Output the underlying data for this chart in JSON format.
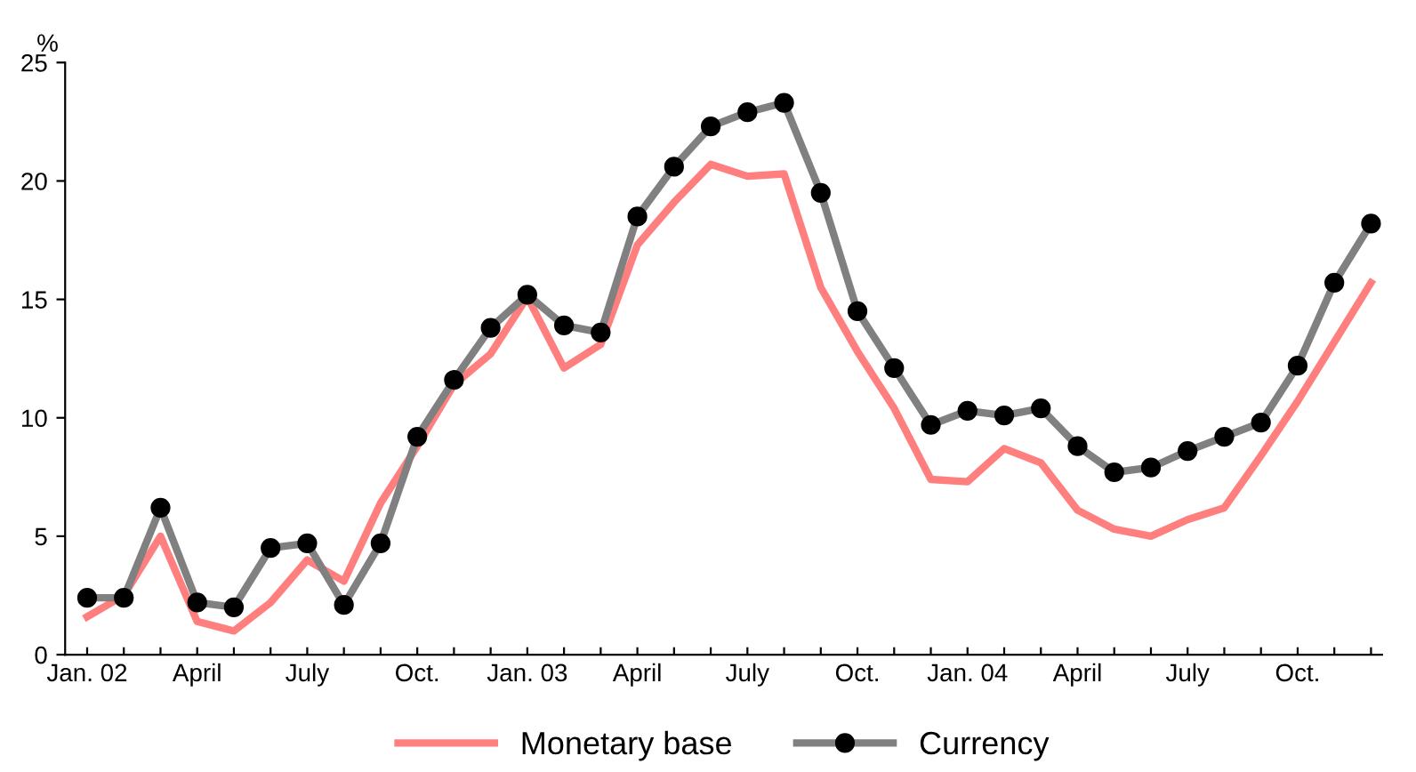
{
  "chart_data": {
    "type": "line",
    "ylabel": "%",
    "categories": [
      "Jan. 02",
      null,
      null,
      "April",
      null,
      null,
      "July",
      null,
      null,
      "Oct.",
      null,
      null,
      "Jan. 03",
      null,
      null,
      "April",
      null,
      null,
      "July",
      null,
      null,
      "Oct.",
      null,
      null,
      "Jan. 04",
      null,
      null,
      "April",
      null,
      null,
      "July",
      null,
      null,
      "Oct.",
      null,
      null
    ],
    "ylim": [
      0,
      25
    ],
    "yticks": [
      0,
      5,
      10,
      15,
      20,
      25
    ],
    "grid": false,
    "legend": "bottom",
    "series": [
      {
        "name": "Monetary base",
        "color": "#ff7f7f",
        "marker": "none",
        "values": [
          1.6,
          2.5,
          5.0,
          1.4,
          1.0,
          2.2,
          4.0,
          3.1,
          6.4,
          8.8,
          11.4,
          12.7,
          15.1,
          12.1,
          13.1,
          17.3,
          19.1,
          20.7,
          20.2,
          20.3,
          15.5,
          12.8,
          10.4,
          7.4,
          7.3,
          8.7,
          8.1,
          6.1,
          5.3,
          5.0,
          5.7,
          6.2,
          8.4,
          10.7,
          13.2,
          15.7
        ]
      },
      {
        "name": "Currency",
        "color": "#808080",
        "marker": "circle",
        "values": [
          2.4,
          2.4,
          6.2,
          2.2,
          2.0,
          4.5,
          4.7,
          2.1,
          4.7,
          9.2,
          11.6,
          13.8,
          15.2,
          13.9,
          13.6,
          18.5,
          20.6,
          22.3,
          22.9,
          23.3,
          19.5,
          14.5,
          12.1,
          9.7,
          10.3,
          10.1,
          10.4,
          8.8,
          7.7,
          7.9,
          8.6,
          9.2,
          9.8,
          12.2,
          15.7,
          18.2
        ]
      }
    ]
  }
}
